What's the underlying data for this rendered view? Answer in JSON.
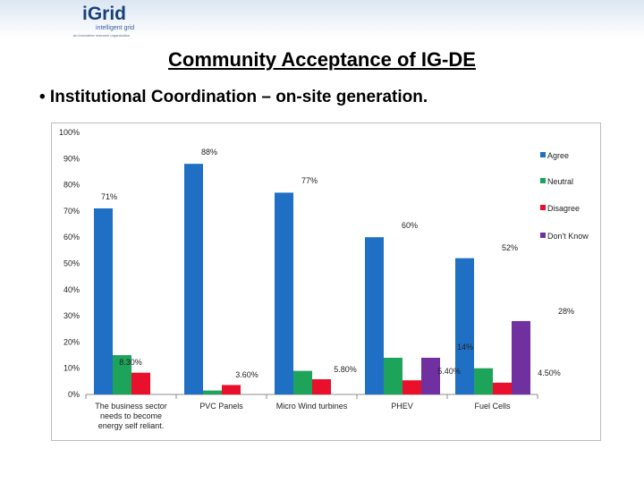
{
  "logo": {
    "main": "iGrid",
    "sub": "intelligent grid",
    "tagline": "an innovative research organization"
  },
  "slide": {
    "title": "Community Acceptance of IG-DE",
    "subtitle": "• Institutional Coordination – on-site generation."
  },
  "colors": {
    "agree": "#1f6fc4",
    "neutral": "#1ea35a",
    "disagree": "#e8102a",
    "dont_know": "#7030a0"
  },
  "chart_data": {
    "type": "bar",
    "title": "",
    "xlabel": "",
    "ylabel": "",
    "ylim": [
      0,
      100
    ],
    "y_ticks": [
      "0%",
      "10%",
      "20%",
      "30%",
      "40%",
      "50%",
      "60%",
      "70%",
      "80%",
      "90%",
      "100%"
    ],
    "categories": [
      "The business sector needs to become energy self reliant.",
      "PVC Panels",
      "Micro Wind turbines",
      "PHEV",
      "Fuel Cells"
    ],
    "category_lines": [
      [
        "The business sector",
        "needs to become",
        "energy self reliant."
      ],
      [
        "PVC Panels"
      ],
      [
        "Micro Wind turbines"
      ],
      [
        "PHEV"
      ],
      [
        "Fuel Cells"
      ]
    ],
    "series": [
      {
        "name": "Agree",
        "values": [
          71,
          88,
          77,
          60,
          52
        ],
        "labels": [
          "71%",
          "88%",
          "77%",
          "60%",
          "52%"
        ]
      },
      {
        "name": "Neutral",
        "values": [
          15,
          1.5,
          9,
          14,
          10
        ],
        "labels": [
          null,
          null,
          null,
          null,
          null
        ]
      },
      {
        "name": "Disagree",
        "values": [
          8.3,
          3.6,
          5.8,
          5.4,
          4.5
        ],
        "labels": [
          "8.30%",
          "3.60%",
          "5.80%",
          "5.40%",
          "4.50%"
        ]
      },
      {
        "name": "Don't Know",
        "values": [
          0,
          0,
          0,
          14,
          28
        ],
        "labels": [
          null,
          null,
          null,
          "14%",
          "28%"
        ]
      }
    ],
    "legend_position": "right",
    "grid": false
  }
}
